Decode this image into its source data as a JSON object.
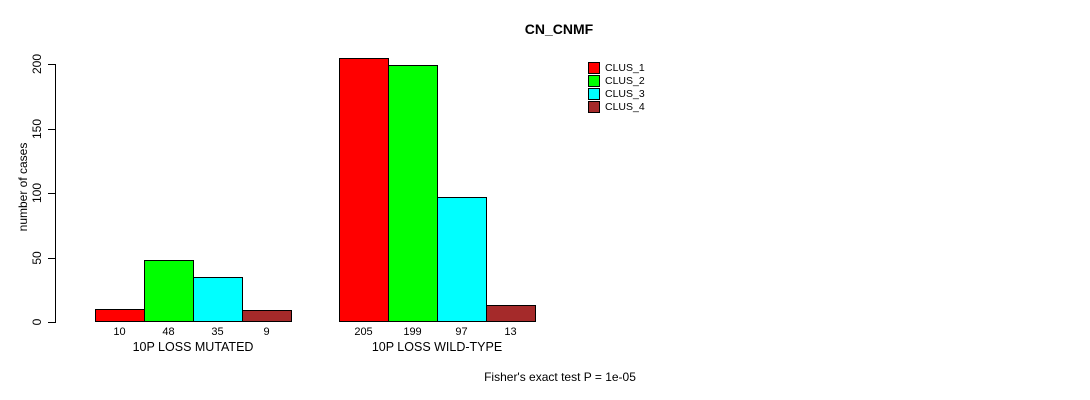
{
  "chart_data": {
    "type": "bar",
    "title": "CN_CNMF",
    "ylabel": "number of cases",
    "xlabel": "",
    "categories": [
      "10P LOSS MUTATED",
      "10P LOSS WILD-TYPE"
    ],
    "series": [
      {
        "name": "CLUS_1",
        "color": "#FF0000",
        "values": [
          10,
          205
        ]
      },
      {
        "name": "CLUS_2",
        "color": "#00FF00",
        "values": [
          48,
          199
        ]
      },
      {
        "name": "CLUS_3",
        "color": "#00FFFF",
        "values": [
          35,
          97
        ]
      },
      {
        "name": "CLUS_4",
        "color": "#A52A2A",
        "values": [
          9,
          13
        ]
      }
    ],
    "yticks": [
      0,
      50,
      100,
      150,
      200
    ],
    "ylim": [
      0,
      205
    ],
    "grid": false,
    "bar_value_labels_shown": true,
    "legend_position": "top-right",
    "annotation": "Fisher's exact test P = 1e-05"
  }
}
